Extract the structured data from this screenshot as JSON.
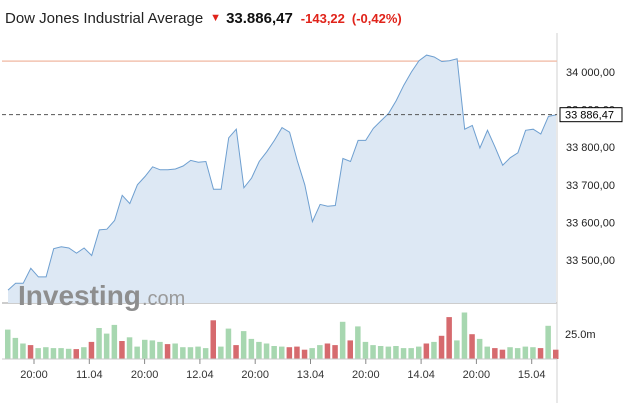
{
  "header": {
    "title": "Dow Jones Industrial Average",
    "price": "33.886,47",
    "change": "-143,22",
    "change_pct": "(-0,42%)"
  },
  "logo": {
    "brand": "Investing",
    "suffix": ".com"
  },
  "current_price_label": "33 886,47",
  "volume_label": "25.0m",
  "colors": {
    "line": "#6e9fd0",
    "area": "#dde8f4",
    "up_bar": "#a7d7b0",
    "down_bar": "#d66a6e",
    "change_down": "#e0231a",
    "ref_line": "#f2c3b0"
  },
  "chart_data": {
    "type": "area",
    "title": "Dow Jones Industrial Average",
    "y_axis": {
      "ticks": [
        "34 000,00",
        "33 900,00",
        "33 800,00",
        "33 700,00",
        "33 600,00",
        "33 500,00"
      ],
      "tick_values": [
        34000,
        33900,
        33800,
        33700,
        33600,
        33500
      ],
      "range": [
        33400,
        34100
      ],
      "position": "right"
    },
    "x_axis": {
      "ticks": [
        "20:00",
        "11.04",
        "20:00",
        "12.04",
        "20:00",
        "13.04",
        "20:00",
        "14.04",
        "20:00",
        "15.04"
      ]
    },
    "reference_level": 34029,
    "current_value": 33886.47,
    "series": [
      {
        "values": [
          33420,
          33438,
          33438,
          33478,
          33455,
          33455,
          33530,
          33535,
          33532,
          33518,
          33532,
          33512,
          33580,
          33582,
          33605,
          33672,
          33650,
          33700,
          33722,
          33748,
          33740,
          33740,
          33742,
          33750,
          33765,
          33760,
          33762,
          33688,
          33688,
          33825,
          33848,
          33692,
          33718,
          33762,
          33788,
          33818,
          33852,
          33840,
          33765,
          33700,
          33602,
          33648,
          33643,
          33645,
          33770,
          33762,
          33818,
          33818,
          33850,
          33870,
          33890,
          33924,
          33965,
          34000,
          34030,
          34045,
          34040,
          34028,
          34030,
          34035,
          33848,
          33858,
          33798,
          33845,
          33800,
          33752,
          33772,
          33785,
          33845,
          33848,
          33835,
          33882,
          33886
        ]
      }
    ],
    "volume": {
      "label": "25.0m",
      "values": [
        0.95,
        0.68,
        0.5,
        0.45,
        0.35,
        0.38,
        0.35,
        0.35,
        0.33,
        0.32,
        0.38,
        0.55,
        1.0,
        0.82,
        1.1,
        0.58,
        0.7,
        0.4,
        0.62,
        0.6,
        0.55,
        0.48,
        0.5,
        0.38,
        0.38,
        0.4,
        0.35,
        1.25,
        0.4,
        0.98,
        0.45,
        0.9,
        0.65,
        0.55,
        0.5,
        0.42,
        0.4,
        0.38,
        0.4,
        0.3,
        0.35,
        0.45,
        0.5,
        0.45,
        1.2,
        0.6,
        1.05,
        0.55,
        0.45,
        0.42,
        0.4,
        0.42,
        0.35,
        0.35,
        0.4,
        0.5,
        0.55,
        0.75,
        1.35,
        0.6,
        1.5,
        0.8,
        0.65,
        0.4,
        0.35,
        0.3,
        0.38,
        0.35,
        0.4,
        0.38,
        0.35,
        1.07,
        0.3
      ],
      "up": [
        true,
        true,
        true,
        false,
        true,
        true,
        true,
        true,
        true,
        false,
        true,
        false,
        true,
        true,
        true,
        false,
        true,
        true,
        true,
        true,
        true,
        false,
        true,
        true,
        true,
        true,
        true,
        false,
        true,
        true,
        false,
        true,
        true,
        true,
        true,
        true,
        true,
        false,
        false,
        false,
        true,
        true,
        false,
        false,
        true,
        false,
        true,
        true,
        true,
        true,
        true,
        true,
        true,
        true,
        true,
        false,
        true,
        false,
        false,
        true,
        true,
        false,
        true,
        true,
        false,
        false,
        true,
        true,
        true,
        true,
        false,
        true,
        false
      ]
    }
  }
}
